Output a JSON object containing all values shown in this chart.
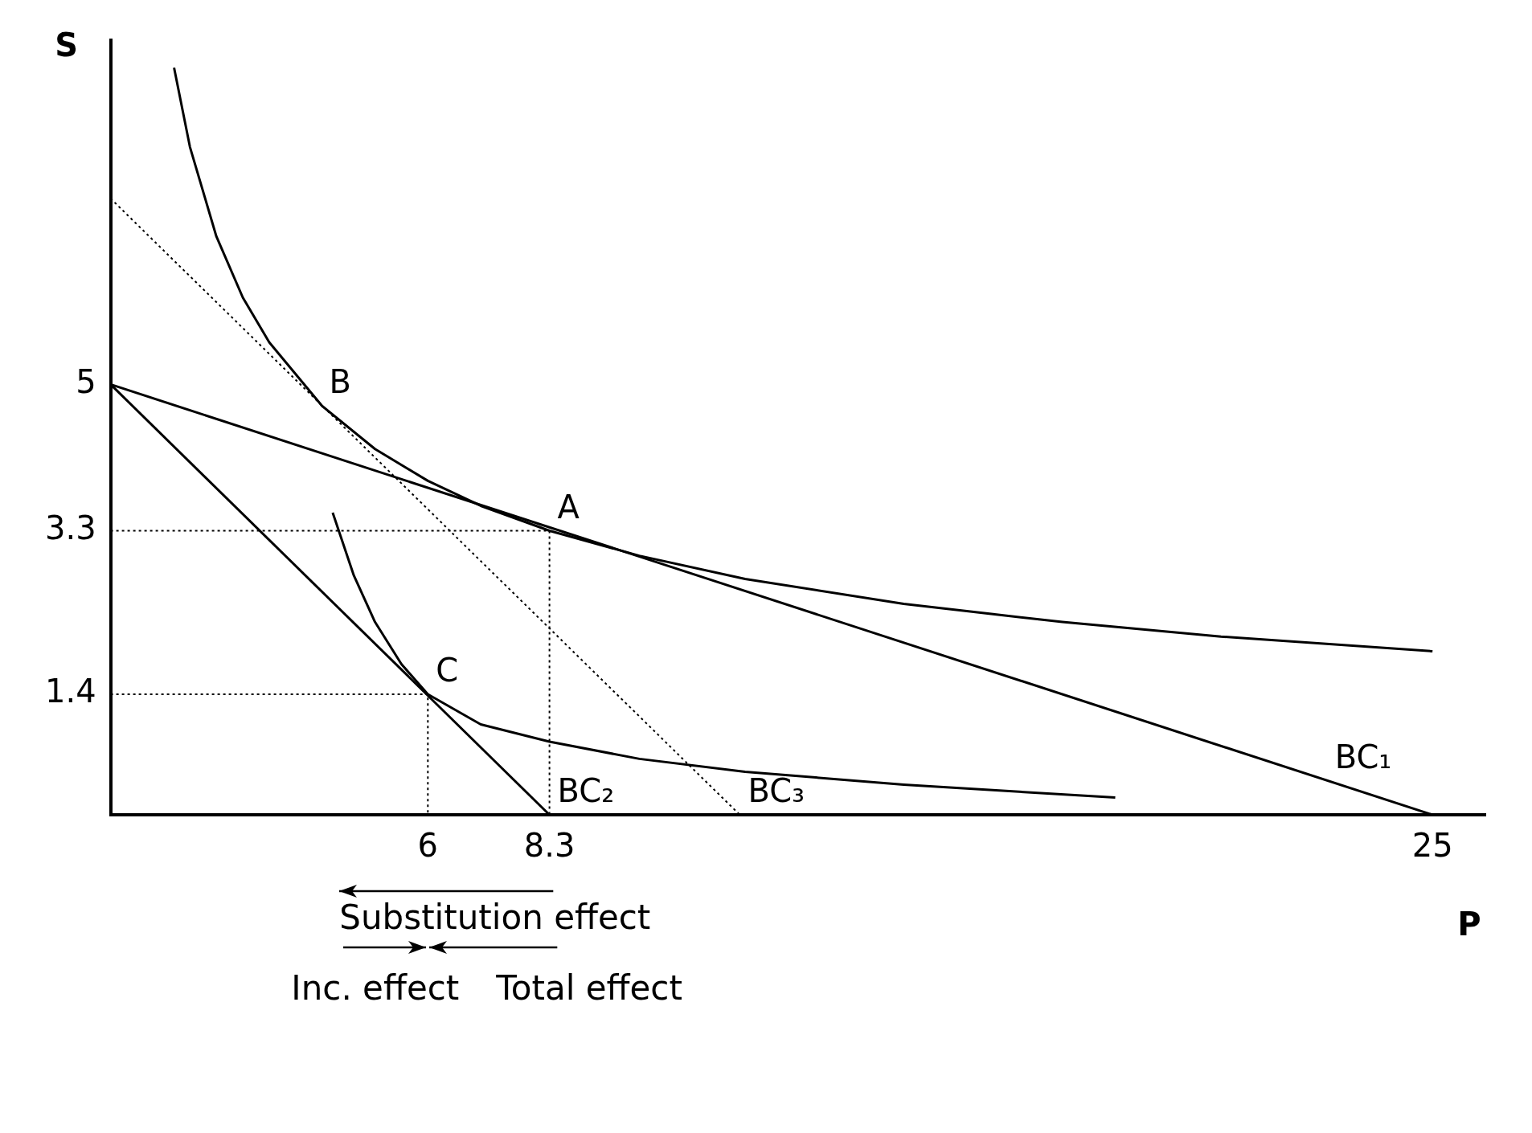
{
  "chart_data": {
    "type": "line",
    "xlabel": "P",
    "ylabel": "S",
    "xlim": [
      0,
      26
    ],
    "ylim": [
      0,
      9
    ],
    "xticks": [
      6,
      8.3,
      25
    ],
    "yticks": [
      1.4,
      3.3,
      5
    ],
    "grid": false,
    "legend": false,
    "marker": "none",
    "series": [
      {
        "color": "#000000",
        "x": [
          1.2,
          1.5,
          2,
          2.5,
          3,
          4,
          5,
          6,
          7,
          8.3,
          10,
          12,
          15,
          18,
          21,
          25
        ],
        "values": [
          8.68,
          7.76,
          6.72,
          6.01,
          5.49,
          4.75,
          4.25,
          3.88,
          3.59,
          3.3,
          3.01,
          2.74,
          2.45,
          2.24,
          2.07,
          1.9
        ]
      },
      {
        "color": "#000000",
        "x": [
          4.2,
          4.6,
          5,
          5.5,
          6,
          7,
          8.3,
          10,
          12,
          15,
          19
        ],
        "values": [
          3.51,
          2.78,
          2.24,
          1.75,
          1.4,
          1.05,
          0.85,
          0.65,
          0.5,
          0.35,
          0.2
        ]
      },
      {
        "color": "#000000",
        "x": [
          0,
          25
        ],
        "values": [
          5,
          0
        ]
      },
      {
        "color": "#000000",
        "x": [
          0,
          8.3
        ],
        "values": [
          5,
          0
        ]
      },
      {
        "color": "#000000",
        "line_style": "dotted",
        "x": [
          0,
          11.9
        ],
        "values": [
          7.16,
          0
        ]
      },
      {
        "color": "#000000",
        "line_style": "dotted",
        "x": [
          0,
          8.3,
          8.3
        ],
        "values": [
          3.3,
          3.3,
          0
        ]
      },
      {
        "color": "#000000",
        "line_style": "dotted",
        "x": [
          0,
          6,
          6
        ],
        "values": [
          1.4,
          1.4,
          0
        ]
      }
    ],
    "annotations": [
      {
        "text": "A",
        "x": 8.3,
        "y": 3.3
      },
      {
        "text": "B",
        "x": 3.98,
        "y": 4.76
      },
      {
        "text": "C",
        "x": 6,
        "y": 1.4
      },
      {
        "text": "BC₁",
        "x": 23,
        "y": 0.4
      },
      {
        "text": "BC₂",
        "x": 8.3,
        "y": 0
      },
      {
        "text": "BC₃",
        "x": 11.9,
        "y": 0
      },
      "Substitution effect",
      "Inc. effect",
      "Total effect"
    ]
  }
}
